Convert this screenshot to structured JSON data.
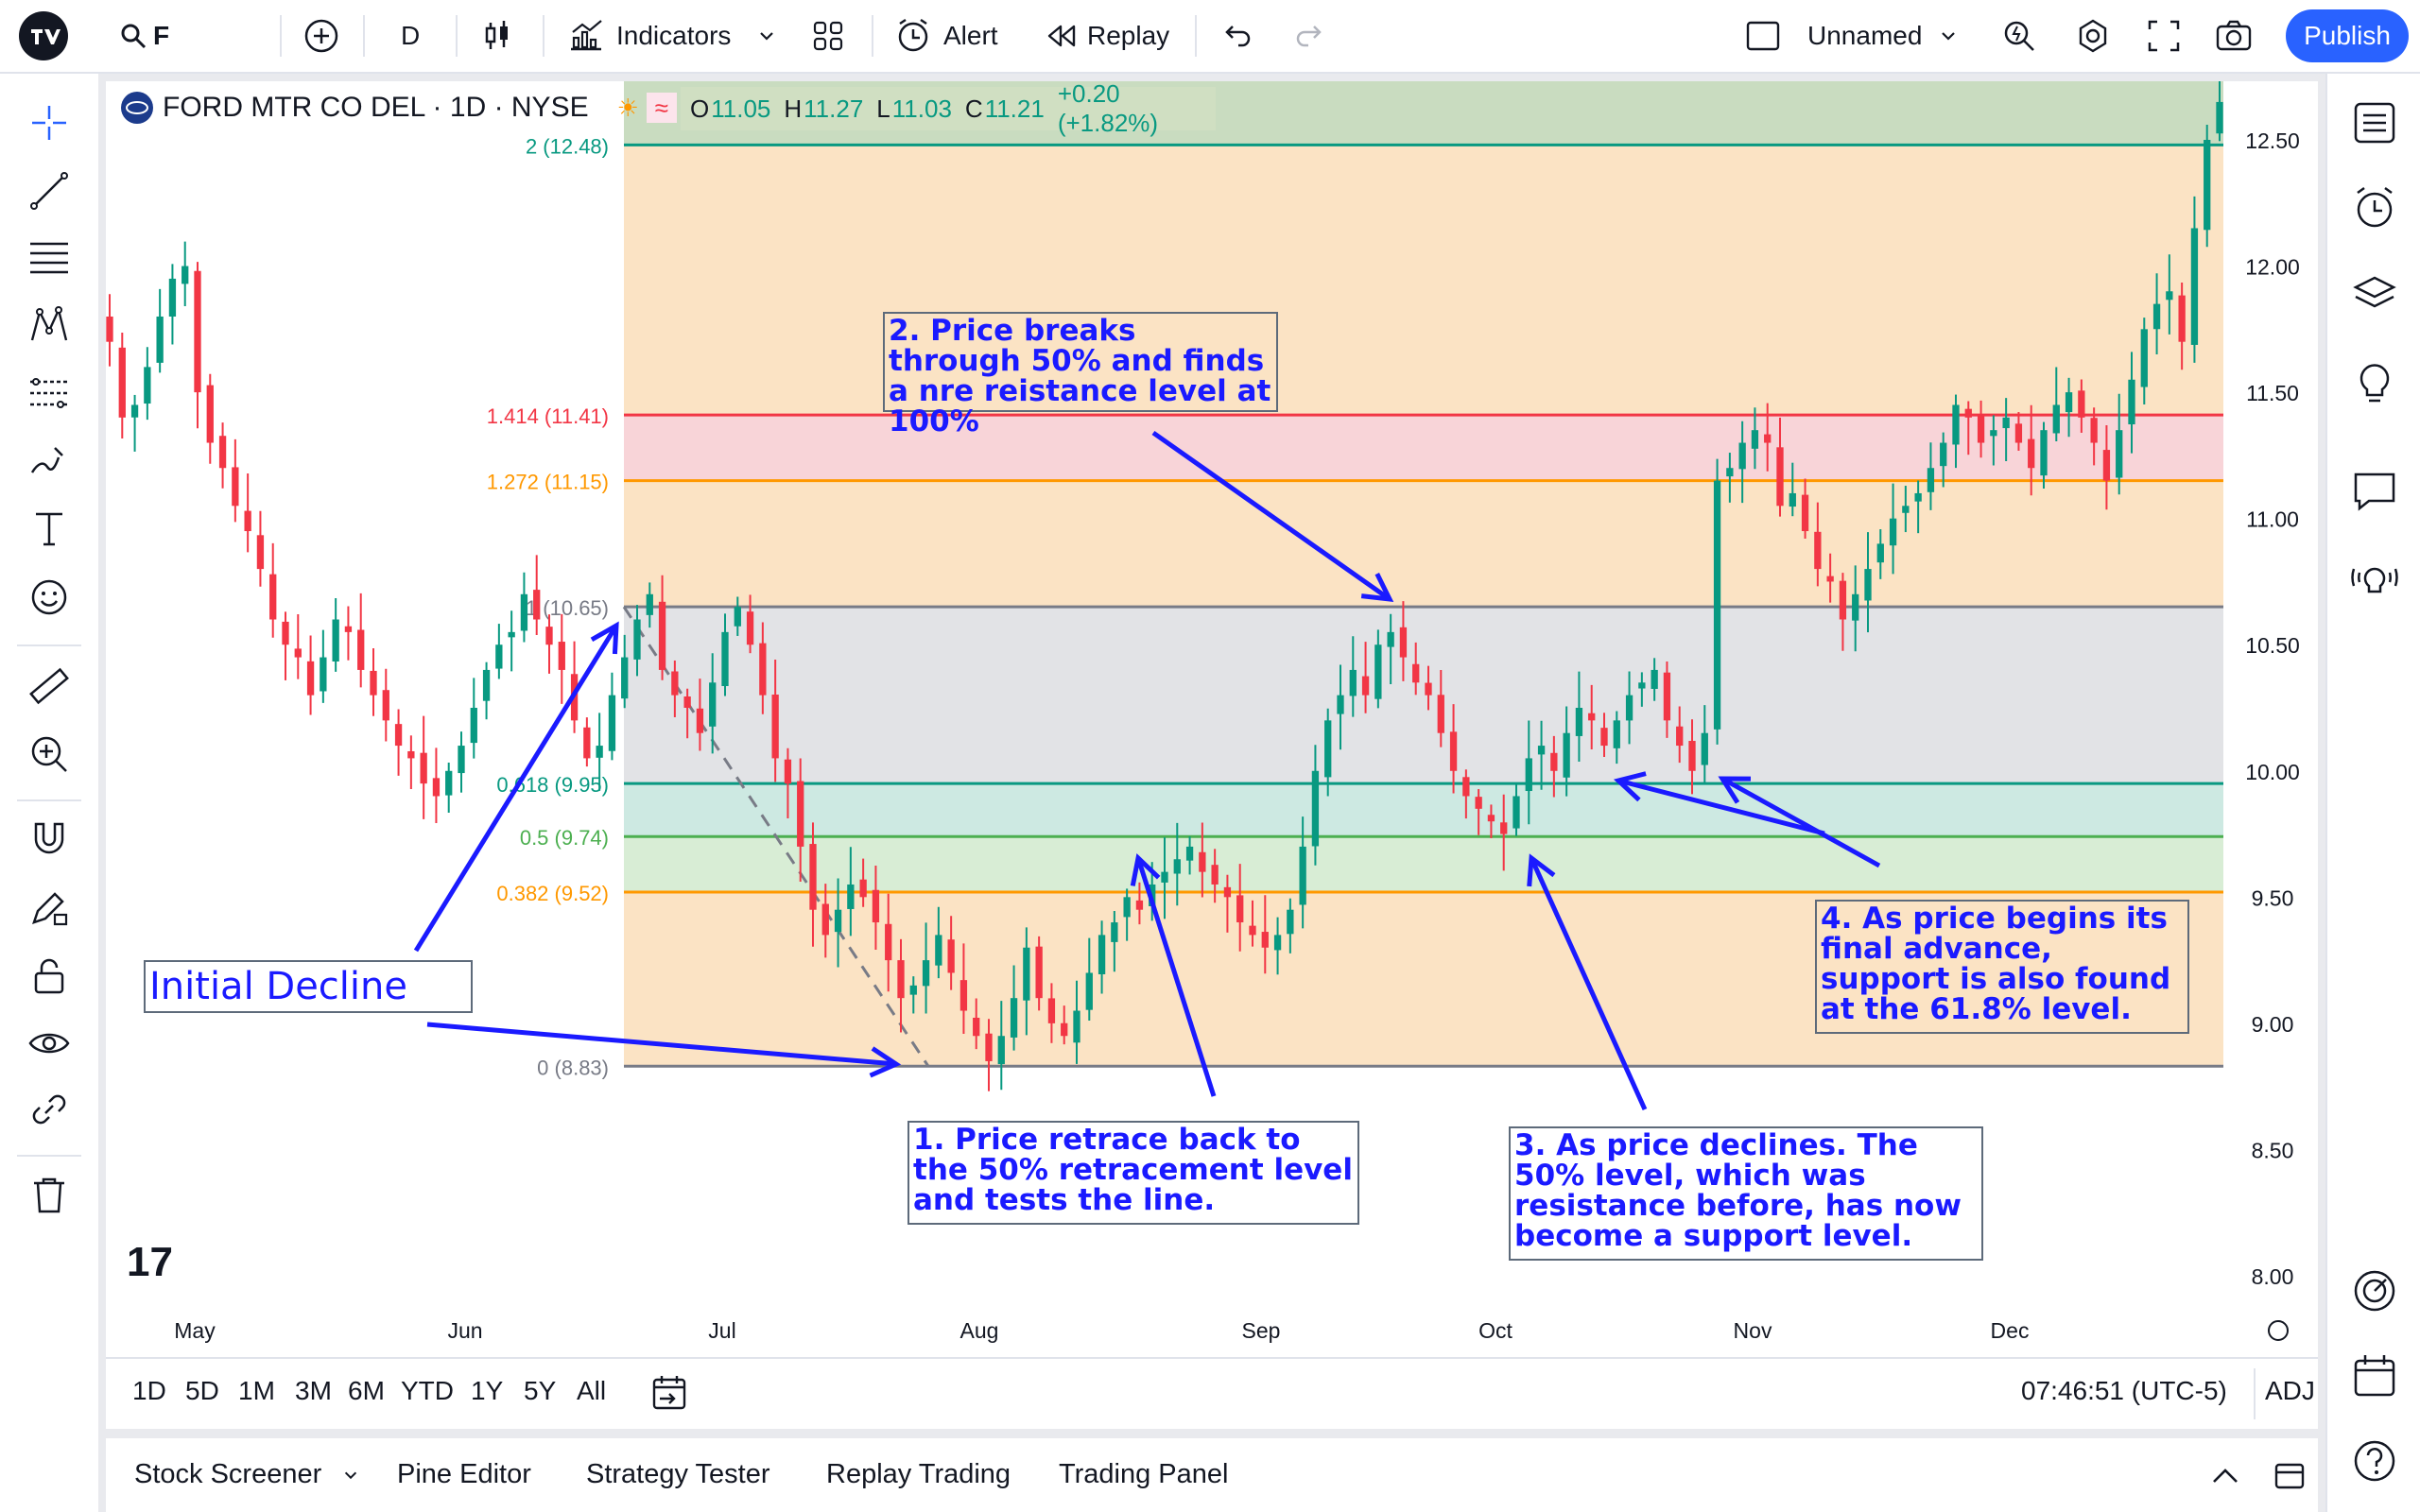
{
  "topbar": {
    "symbol": "F",
    "interval": "D",
    "indicators_label": "Indicators",
    "alert_label": "Alert",
    "replay_label": "Replay",
    "layout_name": "Unnamed",
    "publish_label": "Publish"
  },
  "legend": {
    "name": "FORD MTR CO DEL · 1D · NYSE",
    "o_label": "O",
    "o": "11.05",
    "h_label": "H",
    "h": "11.27",
    "l_label": "L",
    "l": "11.03",
    "c_label": "C",
    "c": "11.21",
    "change": "+0.20 (+1.82%)"
  },
  "fib_levels": [
    {
      "label": "2 (12.48)",
      "price": 12.48,
      "color": "#089981"
    },
    {
      "label": "1.414 (11.41)",
      "price": 11.41,
      "color": "#f23645"
    },
    {
      "label": "1.272 (11.15)",
      "price": 11.15,
      "color": "#ff9800"
    },
    {
      "label": "1 (10.65)",
      "price": 10.65,
      "color": "#787b86"
    },
    {
      "label": "0.618 (9.95)",
      "price": 9.95,
      "color": "#089981"
    },
    {
      "label": "0.5 (9.74)",
      "price": 9.74,
      "color": "#4caf50"
    },
    {
      "label": "0.382 (9.52)",
      "price": 9.52,
      "color": "#ff9800"
    },
    {
      "label": "0 (8.83)",
      "price": 8.83,
      "color": "#787b86"
    }
  ],
  "chart_data": {
    "type": "candlestick",
    "y_axis_ticks": [
      "12.50",
      "12.00",
      "11.50",
      "11.00",
      "10.50",
      "10.00",
      "9.50",
      "9.00",
      "8.50",
      "8.00"
    ],
    "x_axis_ticks": [
      "May",
      "Jun",
      "Jul",
      "Aug",
      "Sep",
      "Oct",
      "Nov",
      "Dec"
    ],
    "ylim": [
      7.85,
      12.75
    ],
    "close_series": [
      11.7,
      11.4,
      11.45,
      11.6,
      11.8,
      11.95,
      12.0,
      11.5,
      11.3,
      11.2,
      11.05,
      10.95,
      10.8,
      10.6,
      10.5,
      10.45,
      10.3,
      10.45,
      10.6,
      10.55,
      10.4,
      10.3,
      10.2,
      10.1,
      10.05,
      9.95,
      9.9,
      10.0,
      10.1,
      10.25,
      10.4,
      10.5,
      10.55,
      10.7,
      10.6,
      10.5,
      10.4,
      10.2,
      10.05,
      10.1,
      10.3,
      10.45,
      10.6,
      10.7,
      10.4,
      10.3,
      10.25,
      10.15,
      10.35,
      10.55,
      10.65,
      10.5,
      10.3,
      10.05,
      9.95,
      9.7,
      9.45,
      9.35,
      9.45,
      9.55,
      9.5,
      9.4,
      9.25,
      9.1,
      9.15,
      9.25,
      9.35,
      9.2,
      9.05,
      8.95,
      8.85,
      8.95,
      9.1,
      9.3,
      9.1,
      9.0,
      8.95,
      9.05,
      9.2,
      9.35,
      9.4,
      9.5,
      9.45,
      9.55,
      9.6,
      9.65,
      9.7,
      9.6,
      9.55,
      9.5,
      9.4,
      9.35,
      9.3,
      9.35,
      9.45,
      9.7,
      10.0,
      10.2,
      10.3,
      10.4,
      10.3,
      10.5,
      10.55,
      10.45,
      10.35,
      10.3,
      10.15,
      10.0,
      9.9,
      9.85,
      9.8,
      9.75,
      9.9,
      10.05,
      10.1,
      10.0,
      10.15,
      10.25,
      10.2,
      10.1,
      10.2,
      10.3,
      10.35,
      10.4,
      10.2,
      10.1,
      10.0,
      10.15,
      11.15,
      11.2,
      11.3,
      11.35,
      11.3,
      11.05,
      11.1,
      10.95,
      10.8,
      10.75,
      10.6,
      10.7,
      10.8,
      10.9,
      11.0,
      11.05,
      11.1,
      11.2,
      11.3,
      11.45,
      11.4,
      11.3,
      11.35,
      11.4,
      11.3,
      11.2,
      11.35,
      11.45,
      11.5,
      11.4,
      11.3,
      11.15,
      11.35,
      11.55,
      11.75,
      11.85,
      11.9,
      11.7,
      12.15,
      12.5,
      12.65
    ]
  },
  "annotations": {
    "initial_decline": "Initial Decline",
    "note1": "1. Price retrace back to the 50% retracement level and tests the line.",
    "note2": "2. Price breaks through 50% and finds a nre reistance level at 100%",
    "note3": "3. As price declines. The 50% level, which was resistance before, has now become a support level.",
    "note4": "4. As price begins its final advance, support is also found at the 61.8% level."
  },
  "range_buttons": [
    "1D",
    "5D",
    "1M",
    "3M",
    "6M",
    "YTD",
    "1Y",
    "5Y",
    "All"
  ],
  "clock": "07:46:51 (UTC-5)",
  "adj_label": "ADJ",
  "bottom_tabs": [
    "Stock Screener",
    "Pine Editor",
    "Strategy Tester",
    "Replay Trading",
    "Trading Panel"
  ],
  "icons": {
    "logo": "tradingview-logo",
    "search": "search-icon",
    "add": "add-symbol-icon",
    "candles": "candle-style-icon",
    "indicators": "indicators-icon",
    "templates": "templates-grid-icon",
    "alert": "alert-clock-icon",
    "replay": "replay-icon",
    "undo": "undo-icon",
    "redo": "redo-icon"
  },
  "colors": {
    "up": "#089981",
    "down": "#f23645",
    "accent": "#2962ff",
    "annotation": "#1a1aff"
  }
}
